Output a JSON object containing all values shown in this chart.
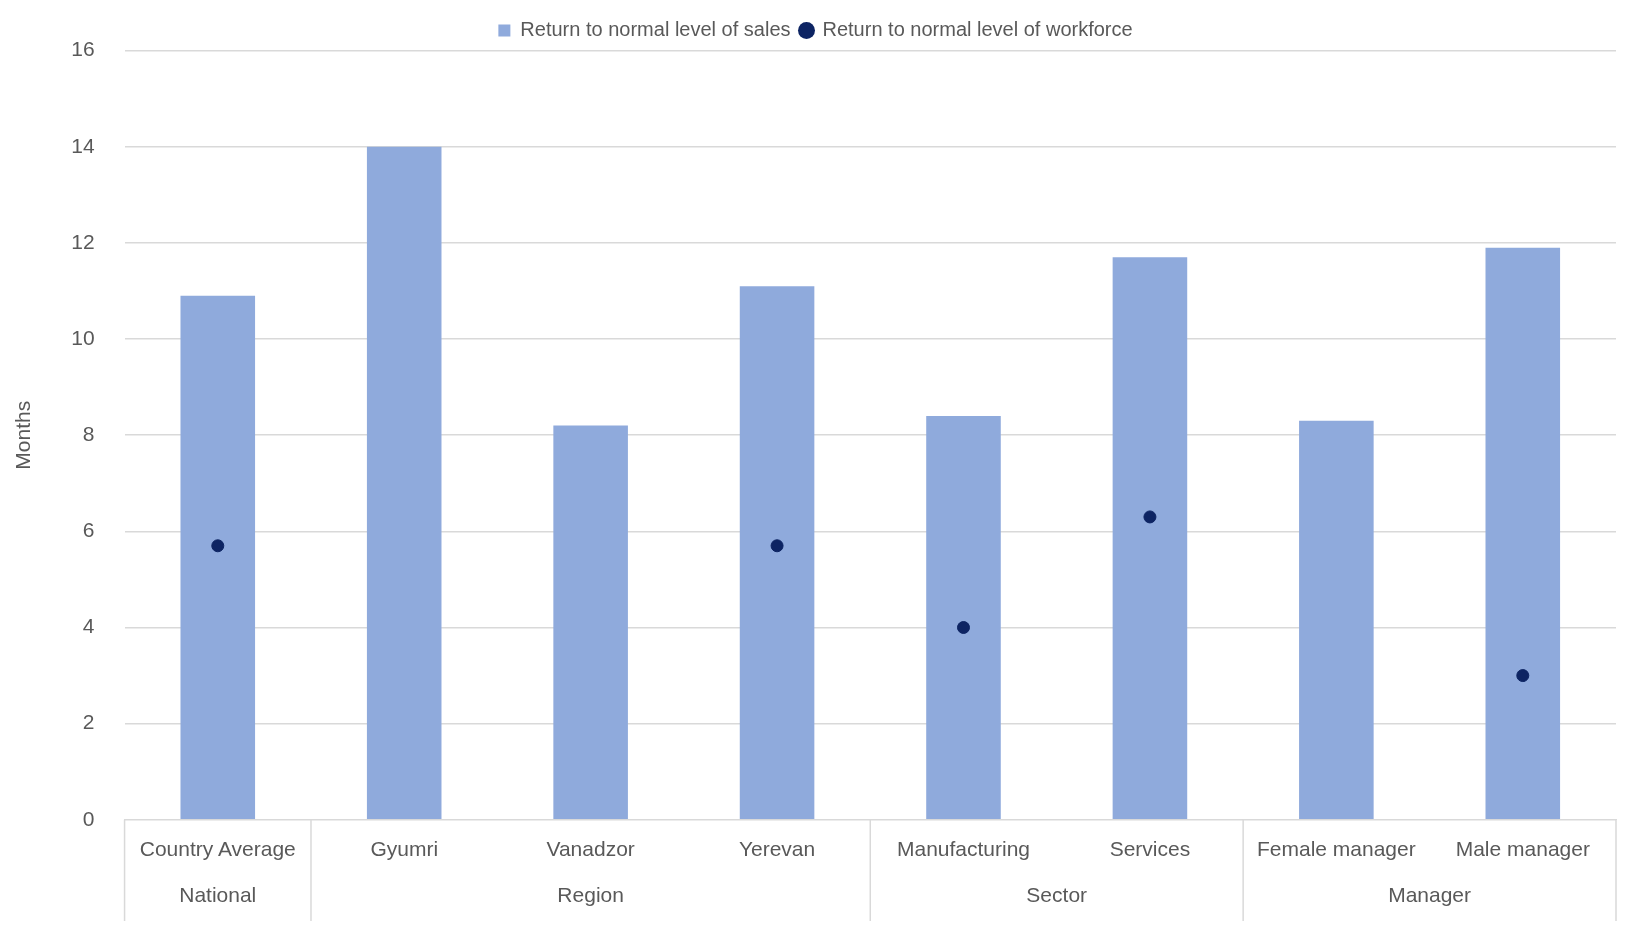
{
  "chart_data": {
    "type": "bar",
    "ylabel": "Months",
    "categories": [
      "Country Average",
      "Gyumri",
      "Vanadzor",
      "Yerevan",
      "Manufacturing",
      "Services",
      "Female manager",
      "Male manager"
    ],
    "series": [
      {
        "name": "Return to normal level of sales",
        "color": "#8faadc",
        "values": [
          10.9,
          14.0,
          8.2,
          11.1,
          8.4,
          11.7,
          8.3,
          11.9
        ]
      },
      {
        "name": "Return to normal level of workforce",
        "type": "scatter",
        "color": "#0d2463",
        "marker": "circle",
        "values": [
          5.7,
          null,
          null,
          5.7,
          4.0,
          6.3,
          null,
          3.0
        ]
      }
    ],
    "annotations": [
      "National",
      "Region",
      "Sector",
      "Manager"
    ],
    "ylim": [
      0,
      16
    ],
    "yticks": [
      0,
      2,
      4,
      6,
      8,
      10,
      12,
      14,
      16
    ],
    "grid": "y",
    "legend": "top"
  }
}
